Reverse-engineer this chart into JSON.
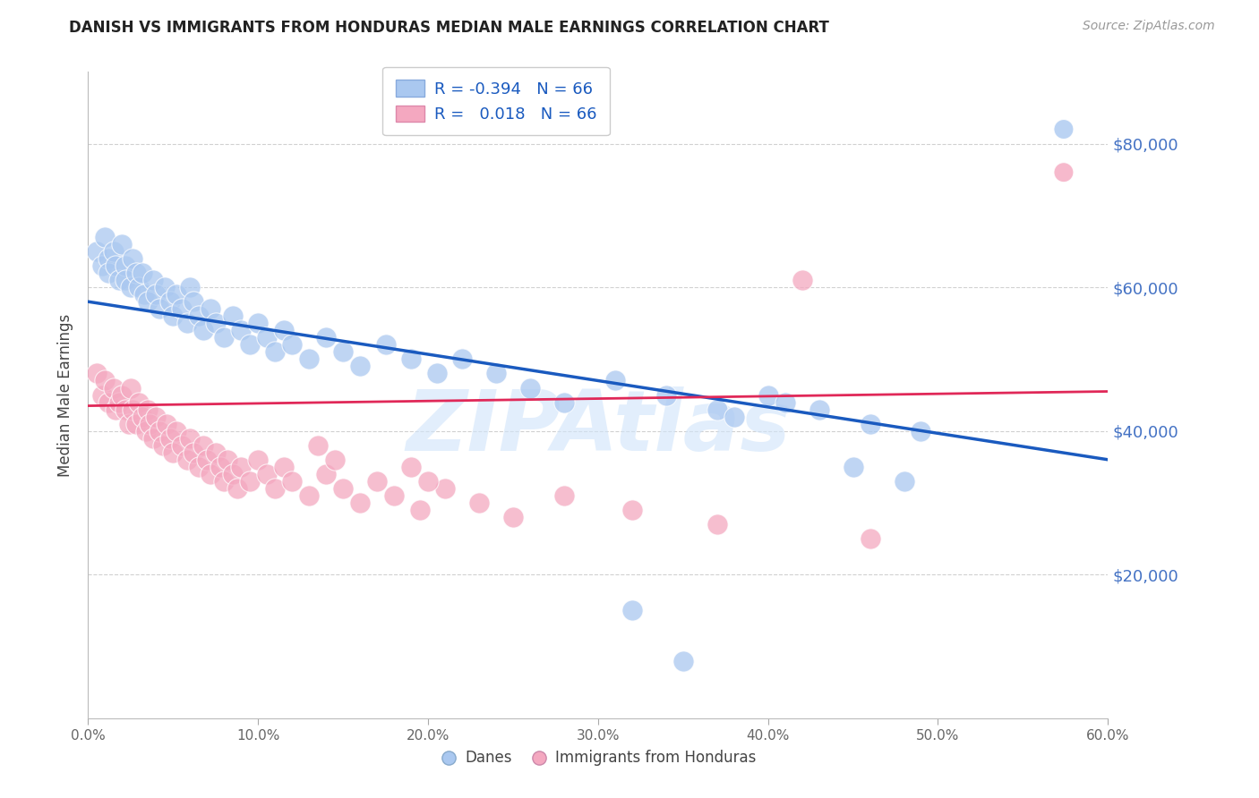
{
  "title": "DANISH VS IMMIGRANTS FROM HONDURAS MEDIAN MALE EARNINGS CORRELATION CHART",
  "source": "Source: ZipAtlas.com",
  "ylabel": "Median Male Earnings",
  "ytick_labels": [
    "$20,000",
    "$40,000",
    "$60,000",
    "$80,000"
  ],
  "ytick_values": [
    20000,
    40000,
    60000,
    80000
  ],
  "xlim": [
    0.0,
    0.6
  ],
  "ylim": [
    0,
    90000
  ],
  "legend_r_danes": "-0.394",
  "legend_r_honduras": "0.018",
  "legend_n": "66",
  "legend_label_danes": "Danes",
  "legend_label_honduras": "Immigrants from Honduras",
  "color_danes": "#aac8f0",
  "color_honduras": "#f4a8c0",
  "color_trend_danes": "#1a5abf",
  "color_trend_honduras": "#e02858",
  "watermark": "ZIPAtlas",
  "watermark_color": "#d0e4fa",
  "danes_x": [
    0.005,
    0.008,
    0.01,
    0.012,
    0.012,
    0.015,
    0.016,
    0.018,
    0.02,
    0.022,
    0.022,
    0.025,
    0.026,
    0.028,
    0.03,
    0.032,
    0.033,
    0.035,
    0.038,
    0.04,
    0.042,
    0.045,
    0.048,
    0.05,
    0.052,
    0.055,
    0.058,
    0.06,
    0.062,
    0.065,
    0.068,
    0.072,
    0.075,
    0.08,
    0.085,
    0.09,
    0.095,
    0.1,
    0.105,
    0.11,
    0.115,
    0.12,
    0.13,
    0.14,
    0.15,
    0.16,
    0.175,
    0.19,
    0.205,
    0.22,
    0.24,
    0.26,
    0.28,
    0.31,
    0.34,
    0.37,
    0.4,
    0.43,
    0.46,
    0.49,
    0.32,
    0.35,
    0.38,
    0.41,
    0.45,
    0.48
  ],
  "danes_y": [
    65000,
    63000,
    67000,
    64000,
    62000,
    65000,
    63000,
    61000,
    66000,
    63000,
    61000,
    60000,
    64000,
    62000,
    60000,
    62000,
    59000,
    58000,
    61000,
    59000,
    57000,
    60000,
    58000,
    56000,
    59000,
    57000,
    55000,
    60000,
    58000,
    56000,
    54000,
    57000,
    55000,
    53000,
    56000,
    54000,
    52000,
    55000,
    53000,
    51000,
    54000,
    52000,
    50000,
    53000,
    51000,
    49000,
    52000,
    50000,
    48000,
    50000,
    48000,
    46000,
    44000,
    47000,
    45000,
    43000,
    45000,
    43000,
    41000,
    40000,
    15000,
    8000,
    42000,
    44000,
    35000,
    33000
  ],
  "honduras_x": [
    0.005,
    0.008,
    0.01,
    0.012,
    0.015,
    0.016,
    0.018,
    0.02,
    0.022,
    0.024,
    0.025,
    0.026,
    0.028,
    0.03,
    0.032,
    0.034,
    0.035,
    0.036,
    0.038,
    0.04,
    0.042,
    0.044,
    0.046,
    0.048,
    0.05,
    0.052,
    0.055,
    0.058,
    0.06,
    0.062,
    0.065,
    0.068,
    0.07,
    0.072,
    0.075,
    0.078,
    0.08,
    0.082,
    0.085,
    0.088,
    0.09,
    0.095,
    0.1,
    0.105,
    0.11,
    0.115,
    0.12,
    0.13,
    0.14,
    0.15,
    0.16,
    0.17,
    0.18,
    0.195,
    0.21,
    0.23,
    0.25,
    0.28,
    0.32,
    0.37,
    0.42,
    0.46,
    0.19,
    0.2,
    0.135,
    0.145
  ],
  "honduras_y": [
    48000,
    45000,
    47000,
    44000,
    46000,
    43000,
    44000,
    45000,
    43000,
    41000,
    46000,
    43000,
    41000,
    44000,
    42000,
    40000,
    43000,
    41000,
    39000,
    42000,
    40000,
    38000,
    41000,
    39000,
    37000,
    40000,
    38000,
    36000,
    39000,
    37000,
    35000,
    38000,
    36000,
    34000,
    37000,
    35000,
    33000,
    36000,
    34000,
    32000,
    35000,
    33000,
    36000,
    34000,
    32000,
    35000,
    33000,
    31000,
    34000,
    32000,
    30000,
    33000,
    31000,
    29000,
    32000,
    30000,
    28000,
    31000,
    29000,
    27000,
    61000,
    25000,
    35000,
    33000,
    38000,
    36000
  ],
  "trend_danes_y0": 58000,
  "trend_danes_y1": 36000,
  "trend_honduras_y0": 43500,
  "trend_honduras_y1": 45500
}
